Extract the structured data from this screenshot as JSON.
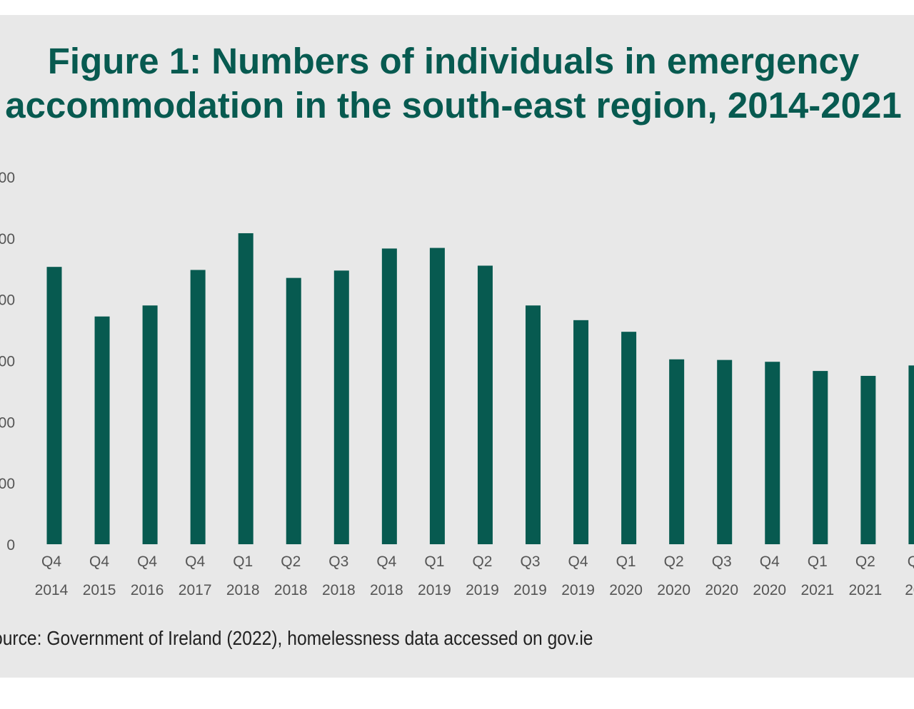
{
  "colors": {
    "background": "#e8e8e8",
    "bar": "#075a50",
    "title": "#075a50",
    "tick": "#555555"
  },
  "title_lines": [
    "Figure 1: Numbers of individuals in emergency",
    "accommodation in the south-east region, 2014-2021"
  ],
  "source": "ource: Government of Ireland (2022), homelessness data accessed on gov.ie",
  "chart_data": {
    "type": "bar",
    "title": "Figure 1: Numbers of individuals in emergency accommodation in the south-east region, 2014-2021",
    "categories": [
      [
        "Q4",
        "2014"
      ],
      [
        "Q4",
        "2015"
      ],
      [
        "Q4",
        "2016"
      ],
      [
        "Q4",
        "2017"
      ],
      [
        "Q1",
        "2018"
      ],
      [
        "Q2",
        "2018"
      ],
      [
        "Q3",
        "2018"
      ],
      [
        "Q4",
        "2018"
      ],
      [
        "Q1",
        "2019"
      ],
      [
        "Q2",
        "2019"
      ],
      [
        "Q3",
        "2019"
      ],
      [
        "Q4",
        "2019"
      ],
      [
        "Q1",
        "2020"
      ],
      [
        "Q2",
        "2020"
      ],
      [
        "Q3",
        "2020"
      ],
      [
        "Q4",
        "2020"
      ],
      [
        "Q1",
        "2021"
      ],
      [
        "Q2",
        "2021"
      ],
      [
        "Q",
        "20"
      ]
    ],
    "values": [
      453,
      372,
      390,
      448,
      508,
      435,
      447,
      483,
      484,
      455,
      390,
      366,
      347,
      302,
      301,
      298,
      283,
      275,
      292
    ],
    "y_tick_labels": [
      "0",
      "00",
      "00",
      "00",
      "00",
      "00",
      "00"
    ],
    "y_tick_values": [
      0,
      100,
      200,
      300,
      400,
      500,
      600
    ],
    "ylim": [
      0,
      600
    ],
    "grid": false,
    "legend": "none"
  }
}
